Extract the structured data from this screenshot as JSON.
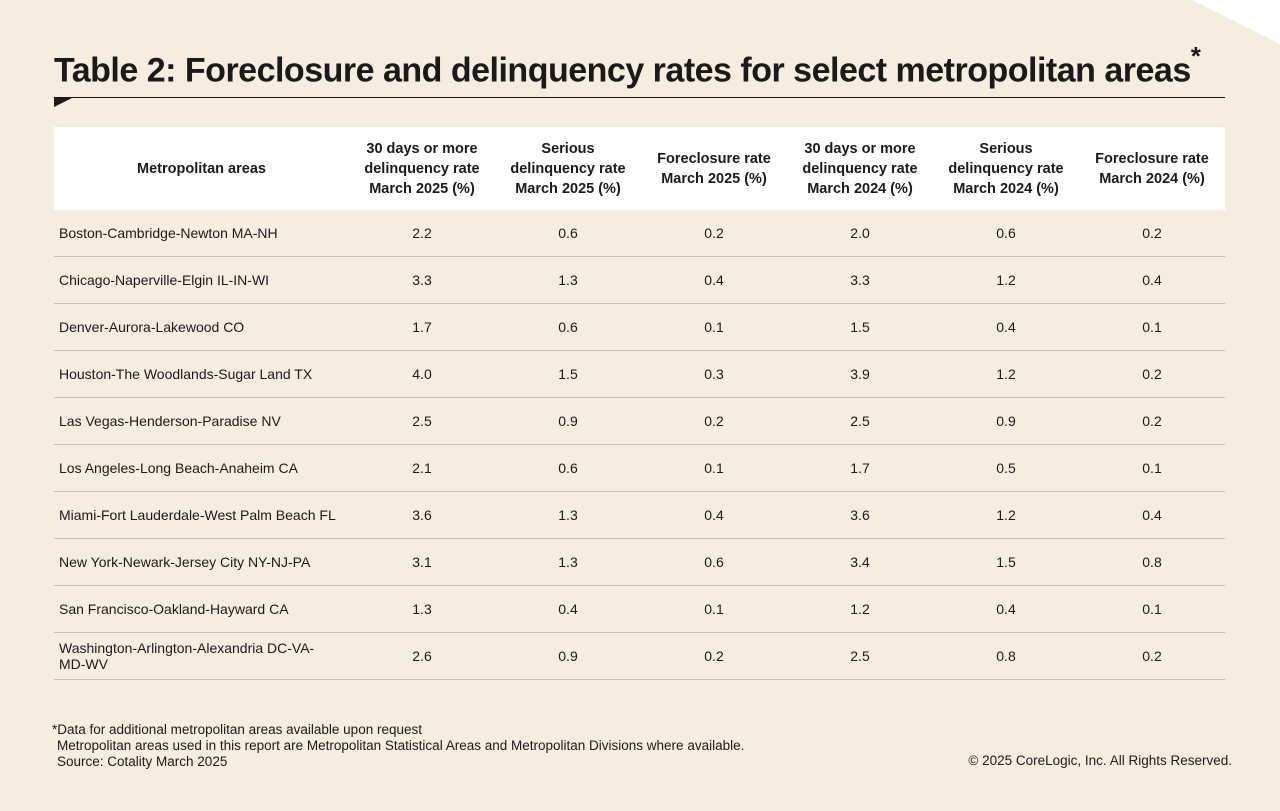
{
  "title": "Table 2: Foreclosure and delinquency rates for select metropolitan areas",
  "title_mark": "*",
  "chart_data": {
    "type": "table",
    "columns": [
      "Metropolitan areas",
      "30 days or more delinquency rate March 2025 (%)",
      "Serious delinquency rate March 2025 (%)",
      "Foreclosure rate March 2025 (%)",
      "30 days or more delinquency rate March 2024 (%)",
      "Serious delinquency rate March 2024 (%)",
      "Foreclosure rate March 2024 (%)"
    ],
    "rows": [
      [
        "Boston-Cambridge-Newton MA-NH",
        "2.2",
        "0.6",
        "0.2",
        "2.0",
        "0.6",
        "0.2"
      ],
      [
        "Chicago-Naperville-Elgin IL-IN-WI",
        "3.3",
        "1.3",
        "0.4",
        "3.3",
        "1.2",
        "0.4"
      ],
      [
        "Denver-Aurora-Lakewood CO",
        "1.7",
        "0.6",
        "0.1",
        "1.5",
        "0.4",
        "0.1"
      ],
      [
        "Houston-The Woodlands-Sugar Land TX",
        "4.0",
        "1.5",
        "0.3",
        "3.9",
        "1.2",
        "0.2"
      ],
      [
        "Las Vegas-Henderson-Paradise NV",
        "2.5",
        "0.9",
        "0.2",
        "2.5",
        "0.9",
        "0.2"
      ],
      [
        "Los Angeles-Long Beach-Anaheim CA",
        "2.1",
        "0.6",
        "0.1",
        "1.7",
        "0.5",
        "0.1"
      ],
      [
        "Miami-Fort Lauderdale-West Palm Beach FL",
        "3.6",
        "1.3",
        "0.4",
        "3.6",
        "1.2",
        "0.4"
      ],
      [
        "New York-Newark-Jersey City NY-NJ-PA",
        "3.1",
        "1.3",
        "0.6",
        "3.4",
        "1.5",
        "0.8"
      ],
      [
        "San Francisco-Oakland-Hayward CA",
        "1.3",
        "0.4",
        "0.1",
        "1.2",
        "0.4",
        "0.1"
      ],
      [
        "Washington-Arlington-Alexandria DC-VA-MD-WV",
        "2.6",
        "0.9",
        "0.2",
        "2.5",
        "0.8",
        "0.2"
      ]
    ]
  },
  "notes": {
    "line1": "*Data for additional metropolitan areas available upon request",
    "line2": "Metropolitan areas used in this report are Metropolitan Statistical Areas and Metropolitan Divisions where available.",
    "line3": "Source: Cotality March 2025"
  },
  "copyright": "© 2025 CoreLogic, Inc. All Rights Reserved.",
  "colors": {
    "background": "#f5ede0",
    "header_background": "#ffffff",
    "text": "#1a1a1a",
    "row_divider": "#c9c1b4"
  }
}
